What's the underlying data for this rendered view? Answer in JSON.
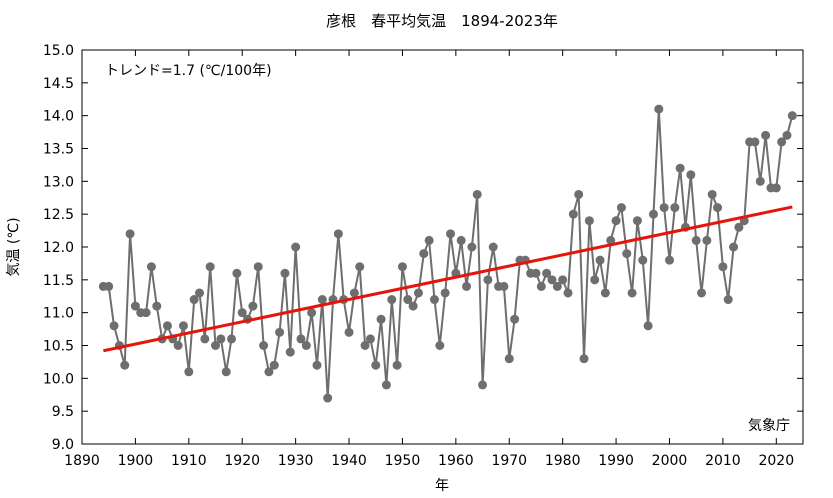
{
  "chart_data": {
    "type": "line",
    "title": "彦根　春平均気温　1894-2023年",
    "xlabel": "年",
    "ylabel": "気温 (℃)",
    "xlim": [
      1890,
      2025
    ],
    "ylim": [
      9.0,
      15.0
    ],
    "x_ticks": [
      1890,
      1900,
      1910,
      1920,
      1930,
      1940,
      1950,
      1960,
      1970,
      1980,
      1990,
      2000,
      2010,
      2020
    ],
    "y_ticks": [
      9.0,
      9.5,
      10.0,
      10.5,
      11.0,
      11.5,
      12.0,
      12.5,
      13.0,
      13.5,
      14.0,
      14.5,
      15.0
    ],
    "trend_label": "トレンド=1.7 (℃/100年)",
    "source_label": "気象庁",
    "grid": false,
    "colors": {
      "series": "#6e6e6e",
      "trend": "#e6140a",
      "axis": "#000000"
    },
    "series": [
      {
        "x": [
          1894,
          1895,
          1896,
          1897,
          1898,
          1899,
          1900,
          1901,
          1902,
          1903,
          1904,
          1905,
          1906,
          1907,
          1908,
          1909,
          1910,
          1911,
          1912,
          1913,
          1914,
          1915,
          1916,
          1917,
          1918,
          1919,
          1920,
          1921,
          1922,
          1923,
          1924,
          1925,
          1926,
          1927,
          1928,
          1929,
          1930,
          1931,
          1932,
          1933,
          1934,
          1935,
          1936,
          1937,
          1938,
          1939,
          1940,
          1941,
          1942,
          1943,
          1944,
          1945,
          1946,
          1947,
          1948,
          1949,
          1950,
          1951,
          1952,
          1953,
          1954,
          1955,
          1956,
          1957,
          1958,
          1959,
          1960,
          1961,
          1962,
          1963,
          1964,
          1965,
          1966,
          1967,
          1968,
          1969,
          1970,
          1971,
          1972,
          1973,
          1974,
          1975,
          1976,
          1977,
          1978,
          1979,
          1980,
          1981,
          1982,
          1983,
          1984,
          1985,
          1986,
          1987,
          1988,
          1989,
          1990,
          1991,
          1992,
          1993,
          1994,
          1995,
          1996,
          1997,
          1998,
          1999,
          2000,
          2001,
          2002,
          2003,
          2004,
          2005,
          2006,
          2007,
          2008,
          2009,
          2010,
          2011,
          2012,
          2013,
          2014,
          2015,
          2016,
          2017,
          2018,
          2019,
          2020,
          2021,
          2022,
          2023
        ],
        "values": [
          11.4,
          11.4,
          10.8,
          10.5,
          10.2,
          12.2,
          11.1,
          11.0,
          11.0,
          11.7,
          11.1,
          10.6,
          10.8,
          10.6,
          10.5,
          10.8,
          10.1,
          11.2,
          11.3,
          10.6,
          11.7,
          10.5,
          10.6,
          10.1,
          10.6,
          11.6,
          11.0,
          10.9,
          11.1,
          11.7,
          10.5,
          10.1,
          10.2,
          10.7,
          11.6,
          10.4,
          12.0,
          10.6,
          10.5,
          11.0,
          10.2,
          11.2,
          9.7,
          11.2,
          12.2,
          11.2,
          10.7,
          11.3,
          11.7,
          10.5,
          10.6,
          10.2,
          10.9,
          9.9,
          11.2,
          10.2,
          11.7,
          11.2,
          11.1,
          11.3,
          11.9,
          12.1,
          11.2,
          10.5,
          11.3,
          12.2,
          11.6,
          12.1,
          11.4,
          12.0,
          12.8,
          9.9,
          11.5,
          12.0,
          11.4,
          11.4,
          10.3,
          10.9,
          11.8,
          11.8,
          11.6,
          11.6,
          11.4,
          11.6,
          11.5,
          11.4,
          11.5,
          11.3,
          12.5,
          12.8,
          10.3,
          12.4,
          11.5,
          11.8,
          11.3,
          12.1,
          12.4,
          12.6,
          11.9,
          11.3,
          12.4,
          11.8,
          10.8,
          12.5,
          14.1,
          12.6,
          11.8,
          12.6,
          13.2,
          12.3,
          13.1,
          12.1,
          11.3,
          12.1,
          12.8,
          12.6,
          11.7,
          11.2,
          12.0,
          12.3,
          12.4,
          13.6,
          13.6,
          13.0,
          13.7,
          12.9,
          12.9,
          13.6,
          13.7,
          14.0
        ]
      }
    ],
    "trend": {
      "x": [
        1894,
        2023
      ],
      "y": [
        10.42,
        12.61
      ]
    }
  }
}
